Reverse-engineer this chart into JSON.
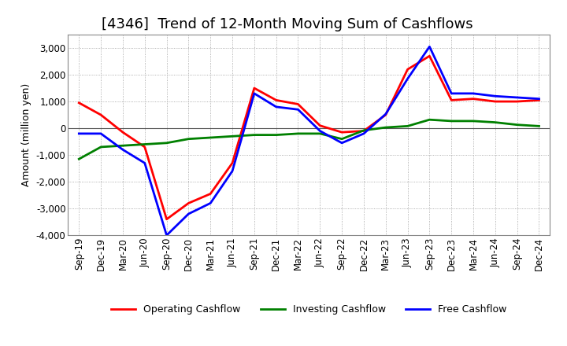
{
  "title": "[4346]  Trend of 12-Month Moving Sum of Cashflows",
  "ylabel": "Amount (million yen)",
  "ylim": [
    -4000,
    3500
  ],
  "yticks": [
    -4000,
    -3000,
    -2000,
    -1000,
    0,
    1000,
    2000,
    3000
  ],
  "x_labels": [
    "Sep-19",
    "Dec-19",
    "Mar-20",
    "Jun-20",
    "Sep-20",
    "Dec-20",
    "Mar-21",
    "Jun-21",
    "Sep-21",
    "Dec-21",
    "Mar-22",
    "Jun-22",
    "Sep-22",
    "Dec-22",
    "Mar-23",
    "Jun-23",
    "Sep-23",
    "Dec-23",
    "Mar-24",
    "Jun-24",
    "Sep-24",
    "Dec-24"
  ],
  "operating": [
    950,
    500,
    -150,
    -700,
    -3400,
    -2800,
    -2450,
    -1300,
    1500,
    1050,
    900,
    100,
    -150,
    -100,
    500,
    2200,
    2700,
    1050,
    1100,
    1000,
    1000,
    1050
  ],
  "investing": [
    -1150,
    -700,
    -650,
    -600,
    -550,
    -400,
    -350,
    -300,
    -250,
    -250,
    -200,
    -200,
    -400,
    -80,
    30,
    80,
    320,
    270,
    270,
    220,
    130,
    80
  ],
  "free": [
    -200,
    -200,
    -800,
    -1300,
    -4000,
    -3200,
    -2800,
    -1600,
    1300,
    800,
    700,
    -100,
    -550,
    -200,
    530,
    1850,
    3050,
    1300,
    1300,
    1200,
    1150,
    1100
  ],
  "operating_color": "#ff0000",
  "investing_color": "#008000",
  "free_color": "#0000ff",
  "line_width": 2.0,
  "bg_color": "#ffffff",
  "grid_color": "#999999",
  "title_fontsize": 13,
  "label_fontsize": 9,
  "tick_fontsize": 8.5,
  "legend_fontsize": 9
}
